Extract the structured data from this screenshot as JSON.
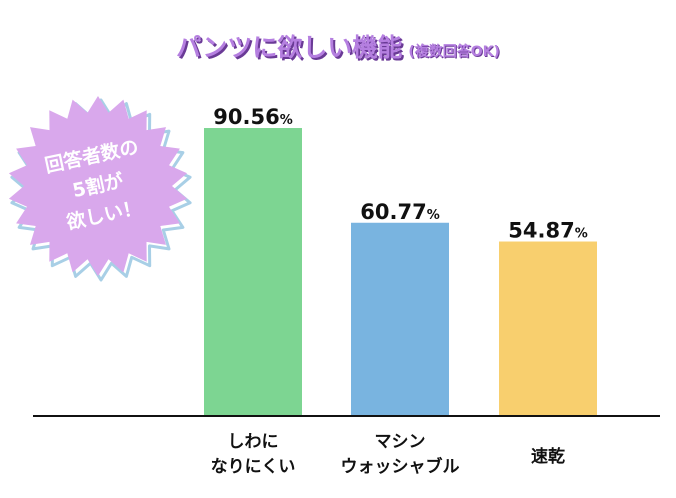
{
  "title": "パンツに欲しい機能",
  "subtitle": "(複数回答OK)",
  "badge": {
    "lines": [
      "回答者数の",
      "5割が",
      "欲しい！"
    ],
    "color": "#d9a8ec"
  },
  "chart_data": {
    "type": "bar",
    "categories": [
      [
        "しわに",
        "なりにくい"
      ],
      [
        "マシン",
        "ウォッシャブル"
      ],
      [
        "速乾"
      ]
    ],
    "values": [
      90.56,
      60.77,
      54.87
    ],
    "value_labels": [
      "90.56",
      "60.77",
      "54.87"
    ],
    "unit": "%",
    "colors": [
      "#7dd592",
      "#79b4e0",
      "#f8cf6e"
    ],
    "ylim": [
      0,
      100
    ],
    "grid": false,
    "legend": "none"
  }
}
